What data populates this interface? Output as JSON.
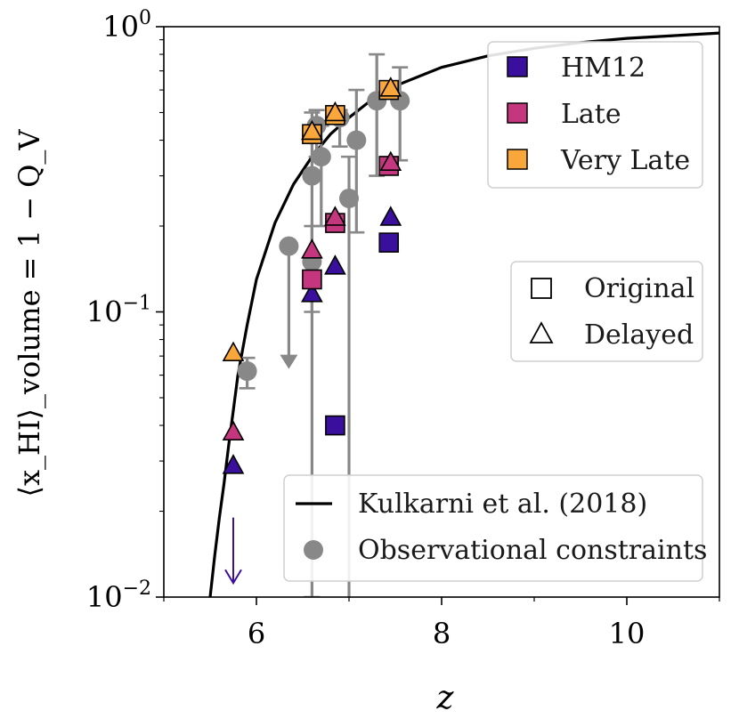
{
  "chart_data": {
    "type": "scatter",
    "title": "",
    "xlabel": "z",
    "ylabel": "⟨x_HI⟩_volume = 1 − Q_V",
    "xlim": [
      5,
      11
    ],
    "ylim": [
      0.01,
      1
    ],
    "yscale": "log",
    "grid": false,
    "x_ticks": [
      6,
      8,
      10
    ],
    "y_ticks": [
      {
        "value": 0.01,
        "base": "10",
        "exp": "−2"
      },
      {
        "value": 0.1,
        "base": "10",
        "exp": "−1"
      },
      {
        "value": 1,
        "base": "10",
        "exp": "0"
      }
    ],
    "legends": {
      "models": {
        "position": "top-right",
        "items": [
          {
            "label": "HM12",
            "color": "#3b0f9e"
          },
          {
            "label": "Late",
            "color": "#c4377e"
          },
          {
            "label": "Very Late",
            "color": "#f9a63a"
          }
        ]
      },
      "markers": {
        "position": "center-right",
        "items": [
          {
            "label": "Original",
            "marker": "square"
          },
          {
            "label": "Delayed",
            "marker": "triangle"
          }
        ]
      },
      "sources": {
        "position": "bottom-right",
        "items": [
          {
            "label": "Kulkarni et al. (2018)",
            "marker": "line",
            "color": "#000000"
          },
          {
            "label": "Observational constraints",
            "marker": "circle",
            "color": "#888888"
          }
        ]
      }
    },
    "curve": {
      "name": "Kulkarni et al. (2018)",
      "color": "#000000",
      "x": [
        5.5,
        5.55,
        5.6,
        5.65,
        5.7,
        5.75,
        5.8,
        5.9,
        6.0,
        6.2,
        6.4,
        6.6,
        6.8,
        7.0,
        7.2,
        7.5,
        8.0,
        8.5,
        9.0,
        9.5,
        10.0,
        10.5,
        11.0
      ],
      "y": [
        0.01,
        0.014,
        0.019,
        0.025,
        0.034,
        0.045,
        0.06,
        0.09,
        0.13,
        0.205,
        0.28,
        0.35,
        0.42,
        0.48,
        0.54,
        0.62,
        0.72,
        0.79,
        0.84,
        0.88,
        0.91,
        0.93,
        0.95
      ]
    },
    "observational_constraints": {
      "color": "#888888",
      "points": [
        {
          "x": 5.9,
          "y": 0.062,
          "yerr_low": 0.008,
          "yerr_high": 0.007
        },
        {
          "x": 6.35,
          "y": 0.17,
          "upper_limit": true,
          "arrow_to": 0.064
        },
        {
          "x": 6.6,
          "y": 0.3,
          "yerr_low": 0.29,
          "yerr_high": 0.2
        },
        {
          "x": 6.6,
          "y": 0.15,
          "yerr_low": 0.05,
          "yerr_high": 0.05
        },
        {
          "x": 6.65,
          "y": 0.45,
          "yerr_low": 0.1,
          "yerr_high": 0.06
        },
        {
          "x": 6.7,
          "y": 0.35,
          "yerr_low": 0.15,
          "yerr_high": 0.1
        },
        {
          "x": 6.9,
          "y": 0.48,
          "yerr_low": 0.1,
          "yerr_high": 0.03
        },
        {
          "x": 7.0,
          "y": 0.25,
          "yerr_low": 0.245,
          "yerr_high": 0.1
        },
        {
          "x": 7.08,
          "y": 0.4,
          "yerr_low": 0.21,
          "yerr_high": 0.2
        },
        {
          "x": 7.3,
          "y": 0.55,
          "yerr_low": 0.25,
          "yerr_high": 0.25
        },
        {
          "x": 7.55,
          "y": 0.55,
          "yerr_low": 0.21,
          "yerr_high": 0.17
        }
      ]
    },
    "model_points": [
      {
        "series": "HM12",
        "marker": "square",
        "x": 6.85,
        "y": 0.04
      },
      {
        "series": "HM12",
        "marker": "square",
        "x": 7.43,
        "y": 0.175
      },
      {
        "series": "HM12",
        "marker": "triangle",
        "x": 5.75,
        "y": 0.029
      },
      {
        "series": "HM12",
        "marker": "triangle",
        "x": 6.6,
        "y": 0.116
      },
      {
        "series": "HM12",
        "marker": "triangle",
        "x": 6.85,
        "y": 0.145
      },
      {
        "series": "HM12",
        "marker": "triangle",
        "x": 7.45,
        "y": 0.215
      },
      {
        "series": "HM12",
        "marker": "upper_limit_arrow",
        "x": 5.75,
        "y": 0.019,
        "arrow_to": 0.0112
      },
      {
        "series": "Late",
        "marker": "square",
        "x": 6.6,
        "y": 0.13
      },
      {
        "series": "Late",
        "marker": "square",
        "x": 6.85,
        "y": 0.205
      },
      {
        "series": "Late",
        "marker": "square",
        "x": 7.43,
        "y": 0.325
      },
      {
        "series": "Late",
        "marker": "triangle",
        "x": 5.75,
        "y": 0.038
      },
      {
        "series": "Late",
        "marker": "triangle",
        "x": 6.6,
        "y": 0.165
      },
      {
        "series": "Late",
        "marker": "triangle",
        "x": 6.85,
        "y": 0.215
      },
      {
        "series": "Late",
        "marker": "triangle",
        "x": 7.45,
        "y": 0.335
      },
      {
        "series": "Very Late",
        "marker": "square",
        "x": 6.6,
        "y": 0.42
      },
      {
        "series": "Very Late",
        "marker": "square",
        "x": 6.85,
        "y": 0.49
      },
      {
        "series": "Very Late",
        "marker": "square",
        "x": 7.43,
        "y": 0.6
      },
      {
        "series": "Very Late",
        "marker": "triangle",
        "x": 5.75,
        "y": 0.072
      },
      {
        "series": "Very Late",
        "marker": "triangle",
        "x": 6.6,
        "y": 0.43
      },
      {
        "series": "Very Late",
        "marker": "triangle",
        "x": 6.85,
        "y": 0.5
      },
      {
        "series": "Very Late",
        "marker": "triangle",
        "x": 7.45,
        "y": 0.61
      }
    ]
  }
}
